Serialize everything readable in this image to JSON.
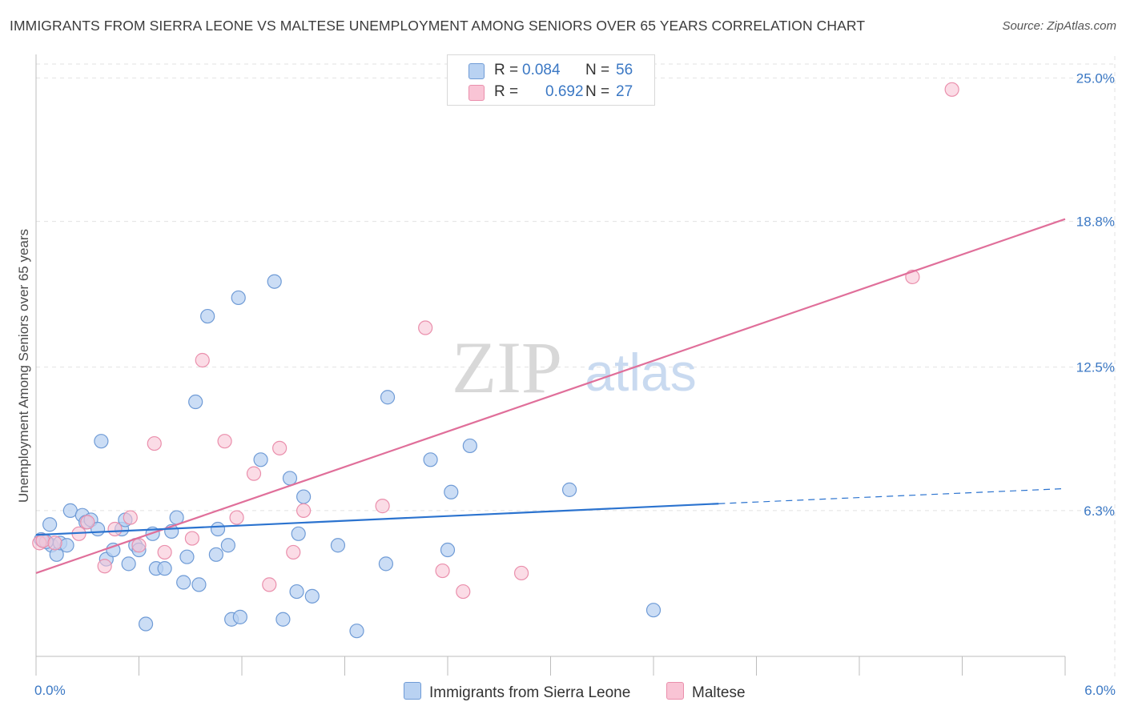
{
  "title": "IMMIGRANTS FROM SIERRA LEONE VS MALTESE UNEMPLOYMENT AMONG SENIORS OVER 65 YEARS CORRELATION CHART",
  "source": "Source: ZipAtlas.com",
  "watermark": {
    "zip": "ZIP",
    "atlas": "atlas"
  },
  "colors": {
    "blue_fill": "#b9d2f2",
    "blue_stroke": "#6f9bd6",
    "blue_line": "#2b73cf",
    "pink_fill": "#f9c4d5",
    "pink_stroke": "#ea8fac",
    "pink_line": "#e06f9a",
    "tick_text": "#3b78c4",
    "grid": "#e2e2e2"
  },
  "legend": {
    "rows": [
      {
        "r_label": "R =",
        "r_value": "0.084",
        "n_label": "N =",
        "n_value": "56"
      },
      {
        "r_label": "R =",
        "r_value": "0.692",
        "n_label": "N =",
        "n_value": "27"
      }
    ]
  },
  "bottom_legend": {
    "series1": "Immigrants from Sierra Leone",
    "series2": "Maltese"
  },
  "chart_data": {
    "type": "scatter",
    "title": "IMMIGRANTS FROM SIERRA LEONE VS MALTESE UNEMPLOYMENT AMONG SENIORS OVER 65 YEARS CORRELATION CHART",
    "xlabel": "",
    "ylabel": "Unemployment Among Seniors over 65 years",
    "xlim": [
      0,
      6.0
    ],
    "ylim": [
      0,
      25.6
    ],
    "x_tick_labels": [
      "0.0%",
      "6.0%"
    ],
    "y_ticks": [
      6.3,
      12.5,
      18.8,
      25.0
    ],
    "y_tick_labels": [
      "6.3%",
      "12.5%",
      "18.8%",
      "25.0%"
    ],
    "series": [
      {
        "name": "Immigrants from Sierra Leone",
        "r": 0.084,
        "n": 56,
        "trend": {
          "x0": 0.0,
          "y0": 5.25,
          "x1": 3.98,
          "y1": 6.6,
          "dash_to_x": 6.0,
          "dash_to_y": 7.25
        },
        "points": [
          [
            0.04,
            5.0
          ],
          [
            0.08,
            5.7
          ],
          [
            0.09,
            4.8
          ],
          [
            0.12,
            4.4
          ],
          [
            0.14,
            4.9
          ],
          [
            0.18,
            4.8
          ],
          [
            0.2,
            6.3
          ],
          [
            0.27,
            6.1
          ],
          [
            0.29,
            5.8
          ],
          [
            0.32,
            5.9
          ],
          [
            0.36,
            5.5
          ],
          [
            0.38,
            9.3
          ],
          [
            0.41,
            4.2
          ],
          [
            0.45,
            4.6
          ],
          [
            0.5,
            5.5
          ],
          [
            0.52,
            5.9
          ],
          [
            0.54,
            4.0
          ],
          [
            0.58,
            4.8
          ],
          [
            0.6,
            4.6
          ],
          [
            0.64,
            1.4
          ],
          [
            0.68,
            5.3
          ],
          [
            0.7,
            3.8
          ],
          [
            0.75,
            3.8
          ],
          [
            0.79,
            5.4
          ],
          [
            0.82,
            6.0
          ],
          [
            0.86,
            3.2
          ],
          [
            0.88,
            4.3
          ],
          [
            0.93,
            11.0
          ],
          [
            0.95,
            3.1
          ],
          [
            1.0,
            14.7
          ],
          [
            1.05,
            4.4
          ],
          [
            1.06,
            5.5
          ],
          [
            1.12,
            4.8
          ],
          [
            1.14,
            1.6
          ],
          [
            1.18,
            15.5
          ],
          [
            1.19,
            1.7
          ],
          [
            1.31,
            8.5
          ],
          [
            1.39,
            16.2
          ],
          [
            1.44,
            1.6
          ],
          [
            1.48,
            7.7
          ],
          [
            1.52,
            2.8
          ],
          [
            1.53,
            5.3
          ],
          [
            1.56,
            6.9
          ],
          [
            1.61,
            2.6
          ],
          [
            1.76,
            4.8
          ],
          [
            1.87,
            1.1
          ],
          [
            2.04,
            4.0
          ],
          [
            2.05,
            11.2
          ],
          [
            2.3,
            8.5
          ],
          [
            2.4,
            4.6
          ],
          [
            2.42,
            7.1
          ],
          [
            2.53,
            9.1
          ],
          [
            3.11,
            7.2
          ],
          [
            3.6,
            2.0
          ],
          [
            0.03,
            5.05
          ],
          [
            0.06,
            4.95
          ]
        ]
      },
      {
        "name": "Maltese",
        "r": 0.692,
        "n": 27,
        "trend": {
          "x0": 0.0,
          "y0": 3.6,
          "x1": 6.0,
          "y1": 18.9
        },
        "points": [
          [
            0.02,
            4.9
          ],
          [
            0.04,
            5.0
          ],
          [
            0.11,
            4.9
          ],
          [
            0.25,
            5.3
          ],
          [
            0.3,
            5.8
          ],
          [
            0.4,
            3.9
          ],
          [
            0.46,
            5.5
          ],
          [
            0.55,
            6.0
          ],
          [
            0.6,
            4.8
          ],
          [
            0.69,
            9.2
          ],
          [
            0.75,
            4.5
          ],
          [
            0.91,
            5.1
          ],
          [
            0.97,
            12.8
          ],
          [
            1.1,
            9.3
          ],
          [
            1.17,
            6.0
          ],
          [
            1.27,
            7.9
          ],
          [
            1.36,
            3.1
          ],
          [
            1.42,
            9.0
          ],
          [
            1.5,
            4.5
          ],
          [
            1.56,
            6.3
          ],
          [
            2.02,
            6.5
          ],
          [
            2.27,
            14.2
          ],
          [
            2.37,
            3.7
          ],
          [
            2.49,
            2.8
          ],
          [
            2.83,
            3.6
          ],
          [
            5.11,
            16.4
          ],
          [
            5.34,
            24.5
          ]
        ]
      }
    ]
  }
}
